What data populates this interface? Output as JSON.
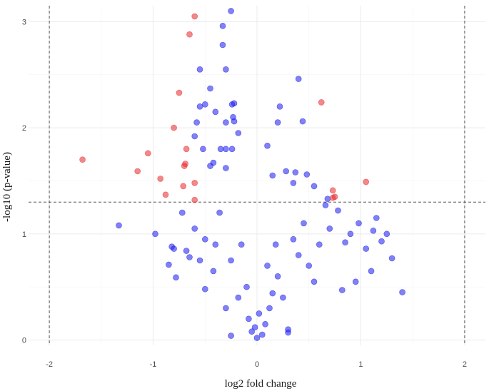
{
  "chart_data": {
    "type": "scatter",
    "title": "",
    "xlabel": "log2 fold change",
    "ylabel": "-log10 (p-value)",
    "xlim": [
      -2.2,
      2.2
    ],
    "ylim": [
      -0.05,
      3.15
    ],
    "x_ticks": [
      -2,
      -1,
      0,
      1,
      2
    ],
    "y_ticks": [
      0,
      1,
      2,
      3
    ],
    "grid": true,
    "legend": "none",
    "thresholds": {
      "x": [
        -2,
        2
      ],
      "y": 1.3
    },
    "colors": {
      "significant": "#e8272a",
      "not_significant": "#1a1aee"
    },
    "series": [
      {
        "significant": true,
        "points": [
          [
            -0.6,
            3.05
          ],
          [
            -0.65,
            2.88
          ],
          [
            -0.75,
            2.33
          ],
          [
            -0.8,
            2.0
          ],
          [
            -1.68,
            1.7
          ],
          [
            -1.05,
            1.76
          ],
          [
            -0.68,
            1.8
          ],
          [
            -1.15,
            1.59
          ],
          [
            -0.7,
            1.64
          ],
          [
            -0.69,
            1.66
          ],
          [
            -0.93,
            1.52
          ],
          [
            -0.6,
            1.48
          ],
          [
            -0.71,
            1.45
          ],
          [
            -0.88,
            1.37
          ],
          [
            -0.6,
            1.32
          ],
          [
            0.62,
            2.24
          ],
          [
            0.73,
            1.41
          ],
          [
            0.73,
            1.34
          ],
          [
            0.75,
            1.35
          ],
          [
            1.05,
            1.49
          ]
        ]
      },
      {
        "significant": false,
        "points": [
          [
            -0.25,
            3.1
          ],
          [
            -0.33,
            2.96
          ],
          [
            -0.33,
            2.78
          ],
          [
            -0.3,
            2.55
          ],
          [
            -0.55,
            2.55
          ],
          [
            -0.45,
            2.37
          ],
          [
            -0.5,
            2.22
          ],
          [
            -0.55,
            2.2
          ],
          [
            -0.22,
            2.23
          ],
          [
            -0.24,
            2.22
          ],
          [
            -0.4,
            2.15
          ],
          [
            -0.23,
            2.1
          ],
          [
            -0.22,
            2.06
          ],
          [
            -0.58,
            2.05
          ],
          [
            -0.3,
            2.05
          ],
          [
            0.4,
            2.46
          ],
          [
            0.22,
            2.2
          ],
          [
            0.44,
            2.06
          ],
          [
            0.2,
            2.05
          ],
          [
            -0.6,
            1.92
          ],
          [
            -0.18,
            1.95
          ],
          [
            -0.35,
            1.8
          ],
          [
            -0.3,
            1.8
          ],
          [
            -0.24,
            1.8
          ],
          [
            0.1,
            1.83
          ],
          [
            -0.52,
            1.8
          ],
          [
            -0.42,
            1.67
          ],
          [
            -0.45,
            1.64
          ],
          [
            -0.3,
            1.62
          ],
          [
            0.15,
            1.55
          ],
          [
            0.28,
            1.59
          ],
          [
            0.37,
            1.58
          ],
          [
            0.48,
            1.56
          ],
          [
            0.35,
            1.48
          ],
          [
            0.55,
            1.45
          ],
          [
            0.68,
            1.33
          ],
          [
            0.78,
            1.22
          ],
          [
            0.66,
            1.27
          ],
          [
            1.15,
            1.15
          ],
          [
            0.98,
            1.1
          ],
          [
            1.25,
            1.0
          ],
          [
            1.12,
            1.03
          ],
          [
            1.2,
            0.93
          ],
          [
            1.05,
            0.86
          ],
          [
            1.3,
            0.77
          ],
          [
            1.4,
            0.45
          ],
          [
            1.1,
            0.65
          ],
          [
            0.85,
            0.92
          ],
          [
            0.95,
            0.55
          ],
          [
            0.82,
            0.47
          ],
          [
            -1.33,
            1.08
          ],
          [
            -0.98,
            1.0
          ],
          [
            -0.82,
            0.88
          ],
          [
            -0.8,
            0.86
          ],
          [
            -0.85,
            0.71
          ],
          [
            -0.78,
            0.59
          ],
          [
            -0.65,
            0.78
          ],
          [
            -0.68,
            0.84
          ],
          [
            -0.72,
            1.2
          ],
          [
            -0.6,
            1.05
          ],
          [
            -0.42,
            0.65
          ],
          [
            -0.5,
            0.48
          ],
          [
            -0.4,
            0.9
          ],
          [
            -0.36,
            1.2
          ],
          [
            -0.15,
            0.9
          ],
          [
            -0.25,
            0.04
          ],
          [
            0.3,
            0.1
          ],
          [
            0.3,
            0.07
          ],
          [
            0.12,
            0.3
          ],
          [
            0.0,
            0.02
          ],
          [
            0.05,
            0.05
          ],
          [
            -0.05,
            0.08
          ],
          [
            0.15,
            0.44
          ],
          [
            0.25,
            0.4
          ],
          [
            -0.18,
            0.4
          ],
          [
            0.2,
            0.6
          ],
          [
            -0.3,
            0.3
          ],
          [
            0.4,
            0.8
          ],
          [
            0.5,
            0.7
          ],
          [
            0.6,
            0.9
          ],
          [
            0.7,
            1.05
          ],
          [
            0.9,
            1.0
          ],
          [
            0.55,
            0.55
          ],
          [
            0.45,
            1.1
          ],
          [
            0.35,
            0.95
          ],
          [
            -0.5,
            0.95
          ],
          [
            -0.55,
            0.75
          ],
          [
            -0.25,
            0.75
          ],
          [
            -0.1,
            0.5
          ],
          [
            0.1,
            0.7
          ],
          [
            0.02,
            0.25
          ],
          [
            -0.02,
            0.12
          ],
          [
            0.08,
            0.15
          ],
          [
            -0.08,
            0.2
          ],
          [
            0.18,
            0.9
          ]
        ]
      }
    ]
  }
}
